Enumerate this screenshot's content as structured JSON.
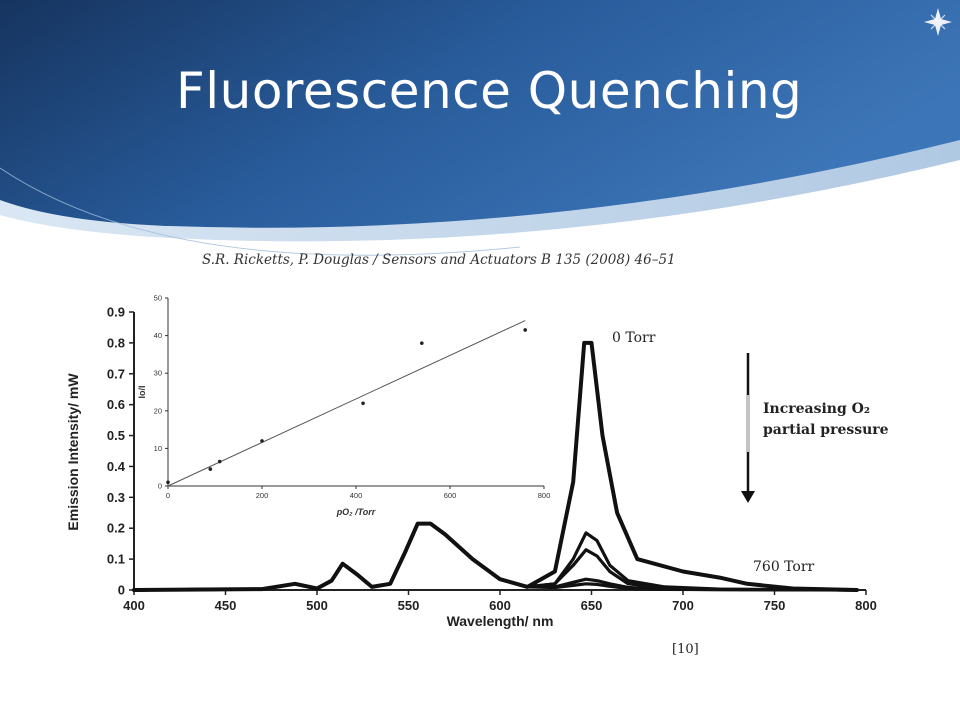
{
  "slide": {
    "title": "Fluorescence Quenching",
    "citation": "S.R. Ricketts, P. Douglas / Sensors and Actuators B 135 (2008) 46–51",
    "reference": "[10]",
    "accent_color": "#1f4e8c"
  },
  "chart_data": [
    {
      "type": "line",
      "xlabel": "Wavelength/ nm",
      "ylabel": "Emission Intensity/ mW",
      "xlim": [
        400,
        800
      ],
      "ylim": [
        0,
        0.9
      ],
      "xticks": [
        400,
        450,
        500,
        550,
        600,
        650,
        700,
        750,
        800
      ],
      "yticks": [
        0,
        0.1,
        0.2,
        0.3,
        0.4,
        0.5,
        0.6,
        0.7,
        0.8,
        0.9
      ],
      "annotations": {
        "top_curve": "0 Torr",
        "bottom_curve": "760 Torr",
        "arrow_label_line1": "Increasing O₂",
        "arrow_label_line2": "partial pressure"
      },
      "series": [
        {
          "values": [
            [
              400,
              0
            ],
            [
              470,
              0.003
            ],
            [
              488,
              0.02
            ],
            [
              500,
              0.005
            ],
            [
              508,
              0.03
            ],
            [
              514,
              0.085
            ],
            [
              522,
              0.05
            ],
            [
              530,
              0.01
            ],
            [
              540,
              0.02
            ],
            [
              548,
              0.12
            ],
            [
              555,
              0.215
            ],
            [
              562,
              0.215
            ],
            [
              570,
              0.18
            ],
            [
              585,
              0.1
            ],
            [
              600,
              0.035
            ],
            [
              615,
              0.01
            ],
            [
              630,
              0.06
            ],
            [
              640,
              0.35
            ],
            [
              646,
              0.8
            ],
            [
              650,
              0.8
            ],
            [
              656,
              0.5
            ],
            [
              664,
              0.25
            ],
            [
              675,
              0.1
            ],
            [
              700,
              0.06
            ],
            [
              720,
              0.04
            ],
            [
              735,
              0.02
            ],
            [
              760,
              0.005
            ],
            [
              795,
              0
            ]
          ]
        },
        {
          "values": [
            [
              400,
              0
            ],
            [
              470,
              0.003
            ],
            [
              488,
              0.02
            ],
            [
              500,
              0.005
            ],
            [
              508,
              0.03
            ],
            [
              514,
              0.085
            ],
            [
              522,
              0.05
            ],
            [
              530,
              0.01
            ],
            [
              540,
              0.02
            ],
            [
              548,
              0.12
            ],
            [
              555,
              0.215
            ],
            [
              562,
              0.215
            ],
            [
              570,
              0.18
            ],
            [
              585,
              0.1
            ],
            [
              600,
              0.035
            ],
            [
              615,
              0.01
            ],
            [
              630,
              0.02
            ],
            [
              640,
              0.1
            ],
            [
              647,
              0.185
            ],
            [
              653,
              0.16
            ],
            [
              660,
              0.08
            ],
            [
              670,
              0.03
            ],
            [
              690,
              0.01
            ],
            [
              720,
              0.003
            ],
            [
              760,
              0.001
            ],
            [
              795,
              0
            ]
          ]
        },
        {
          "values": [
            [
              400,
              0
            ],
            [
              470,
              0.003
            ],
            [
              488,
              0.02
            ],
            [
              500,
              0.005
            ],
            [
              508,
              0.03
            ],
            [
              514,
              0.085
            ],
            [
              522,
              0.05
            ],
            [
              530,
              0.01
            ],
            [
              540,
              0.02
            ],
            [
              548,
              0.12
            ],
            [
              555,
              0.215
            ],
            [
              562,
              0.215
            ],
            [
              570,
              0.18
            ],
            [
              585,
              0.1
            ],
            [
              600,
              0.035
            ],
            [
              615,
              0.01
            ],
            [
              630,
              0.02
            ],
            [
              640,
              0.08
            ],
            [
              647,
              0.13
            ],
            [
              653,
              0.11
            ],
            [
              660,
              0.06
            ],
            [
              670,
              0.02
            ],
            [
              690,
              0.007
            ],
            [
              720,
              0.002
            ],
            [
              760,
              0.001
            ],
            [
              795,
              0
            ]
          ]
        },
        {
          "values": [
            [
              400,
              0
            ],
            [
              470,
              0.003
            ],
            [
              488,
              0.02
            ],
            [
              500,
              0.005
            ],
            [
              508,
              0.03
            ],
            [
              514,
              0.085
            ],
            [
              522,
              0.05
            ],
            [
              530,
              0.01
            ],
            [
              540,
              0.02
            ],
            [
              548,
              0.12
            ],
            [
              555,
              0.215
            ],
            [
              562,
              0.215
            ],
            [
              570,
              0.18
            ],
            [
              585,
              0.1
            ],
            [
              600,
              0.035
            ],
            [
              615,
              0.01
            ],
            [
              630,
              0.01
            ],
            [
              640,
              0.025
            ],
            [
              647,
              0.035
            ],
            [
              653,
              0.03
            ],
            [
              660,
              0.02
            ],
            [
              670,
              0.008
            ],
            [
              690,
              0.003
            ],
            [
              720,
              0.001
            ],
            [
              795,
              0
            ]
          ]
        },
        {
          "values": [
            [
              400,
              0
            ],
            [
              470,
              0.003
            ],
            [
              488,
              0.02
            ],
            [
              500,
              0.005
            ],
            [
              508,
              0.03
            ],
            [
              514,
              0.085
            ],
            [
              522,
              0.05
            ],
            [
              530,
              0.01
            ],
            [
              540,
              0.02
            ],
            [
              548,
              0.12
            ],
            [
              555,
              0.215
            ],
            [
              562,
              0.215
            ],
            [
              570,
              0.18
            ],
            [
              585,
              0.1
            ],
            [
              600,
              0.035
            ],
            [
              615,
              0.01
            ],
            [
              630,
              0.008
            ],
            [
              640,
              0.015
            ],
            [
              647,
              0.02
            ],
            [
              653,
              0.018
            ],
            [
              660,
              0.012
            ],
            [
              670,
              0.005
            ],
            [
              690,
              0.002
            ],
            [
              795,
              0
            ]
          ]
        }
      ]
    },
    {
      "type": "scatter",
      "xlabel": "pO₂ /Torr",
      "ylabel": "Io/I",
      "xlim": [
        0,
        800
      ],
      "ylim": [
        0,
        50
      ],
      "xticks": [
        0,
        200,
        400,
        600,
        800
      ],
      "yticks": [
        0,
        10,
        20,
        30,
        40,
        50
      ],
      "points": [
        [
          0,
          1
        ],
        [
          90,
          4.5
        ],
        [
          110,
          6.5
        ],
        [
          200,
          12
        ],
        [
          415,
          22
        ],
        [
          540,
          38
        ],
        [
          760,
          41.5
        ]
      ],
      "fit_line": [
        [
          0,
          0
        ],
        [
          760,
          44
        ]
      ]
    }
  ]
}
